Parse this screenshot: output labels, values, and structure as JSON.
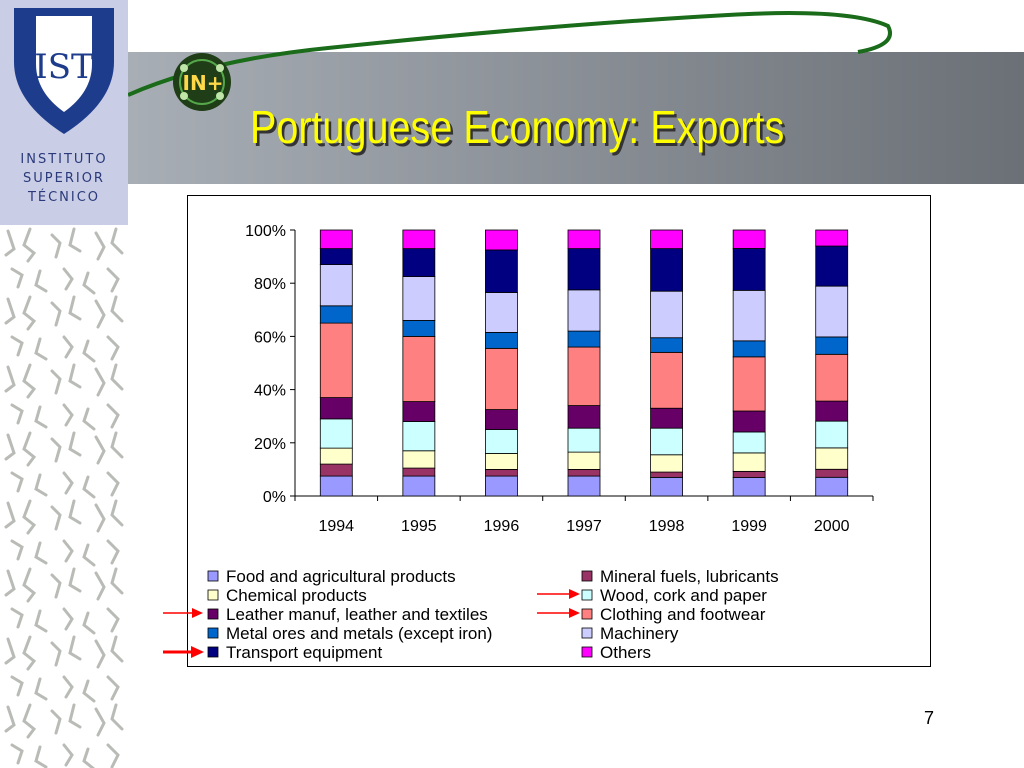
{
  "slide": {
    "title": "Portuguese Economy: Exports",
    "page_number": "7",
    "institution": [
      "INSTITUTO",
      "SUPERIOR",
      "TÉCNICO"
    ],
    "logo_text": "IST",
    "badge_text": "IN+"
  },
  "colors": {
    "title": "#ffff00",
    "header_gradient": [
      "#a8aeb5",
      "#6b7077"
    ],
    "logo_box": "#c9cde6",
    "shield": "#1e3c8c",
    "arrow": "#ff0000"
  },
  "chart_data": {
    "type": "bar",
    "stacked": true,
    "percent": true,
    "categories": [
      "1994",
      "1995",
      "1996",
      "1997",
      "1998",
      "1999",
      "2000"
    ],
    "y_ticks": [
      "0%",
      "20%",
      "40%",
      "60%",
      "80%",
      "100%"
    ],
    "ylim": [
      0,
      100
    ],
    "series": [
      {
        "name": "Food and agricultural products",
        "color": "#9999ff",
        "values": [
          7.5,
          7.5,
          7.5,
          7.5,
          7,
          7.5,
          7
        ]
      },
      {
        "name": "Mineral fuels, lubricants",
        "color": "#993366",
        "values": [
          4.5,
          3,
          2.5,
          2.5,
          2,
          2.5,
          3
        ]
      },
      {
        "name": "Chemical products",
        "color": "#ffffcc",
        "values": [
          6,
          6.5,
          6,
          6.5,
          6.5,
          7.5,
          8
        ]
      },
      {
        "name": "Wood, cork and paper",
        "color": "#ccffff",
        "values": [
          11,
          11,
          9,
          9,
          10,
          8.5,
          10
        ]
      },
      {
        "name": "Leather manuf, leather and textiles",
        "color": "#660066",
        "values": [
          8,
          7.5,
          7.5,
          8.5,
          7.5,
          8.5,
          7.5
        ]
      },
      {
        "name": "Clothing and footwear",
        "color": "#ff8080",
        "values": [
          28,
          24.5,
          23,
          22,
          21,
          22,
          17.5
        ]
      },
      {
        "name": "Metal ores and metals (except iron)",
        "color": "#0066cc",
        "values": [
          6.5,
          6,
          6,
          6,
          5.5,
          6.5,
          6.5
        ]
      },
      {
        "name": "Machinery",
        "color": "#ccccff",
        "values": [
          15.5,
          16.5,
          15,
          15.5,
          17.5,
          20.5,
          19
        ]
      },
      {
        "name": "Transport equipment",
        "color": "#000080",
        "values": [
          6,
          10.5,
          16,
          15.5,
          16,
          17,
          15
        ]
      },
      {
        "name": "Others",
        "color": "#ff00ff",
        "values": [
          7,
          7,
          7.5,
          7,
          7,
          7.5,
          6
        ]
      }
    ],
    "legend": {
      "placement": "bottom",
      "columns": 2,
      "highlighted": [
        "Wood, cork and paper",
        "Leather manuf, leather and textiles",
        "Clothing and footwear",
        "Transport equipment"
      ]
    }
  }
}
